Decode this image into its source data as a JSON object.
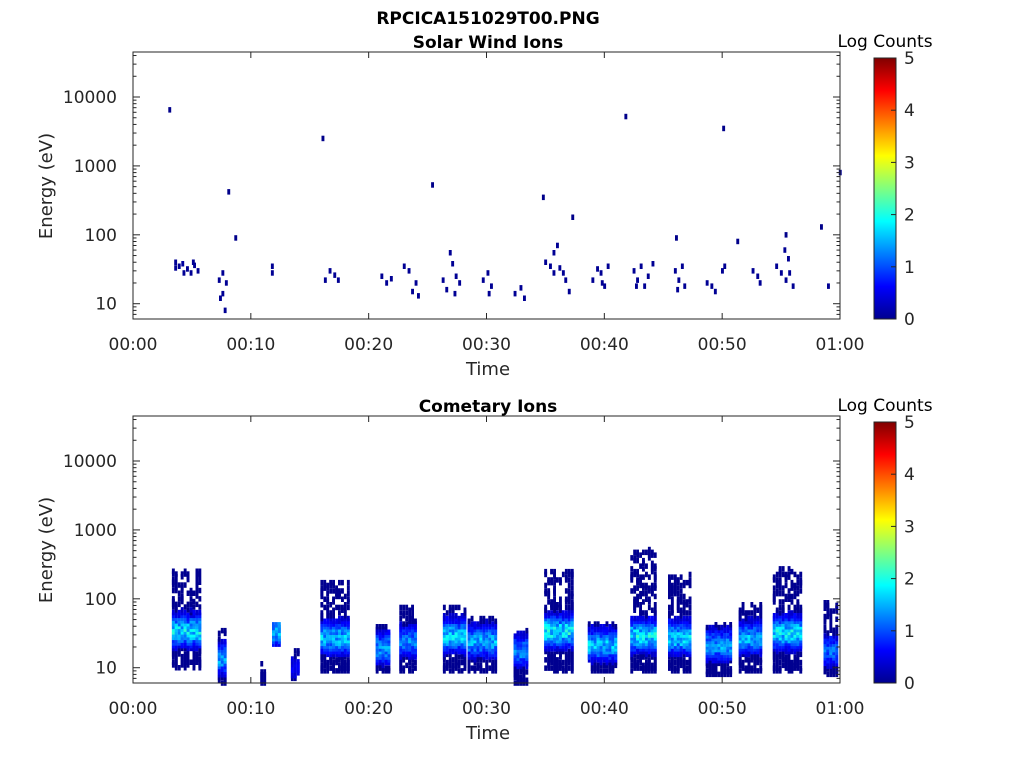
{
  "figure_title": "RPCICA151029T00.PNG",
  "chart_data": [
    {
      "type": "heatmap",
      "title": "Solar Wind Ions",
      "xlabel": "Time",
      "ylabel": "Energy (eV)",
      "x_ticks": [
        "00:00",
        "00:10",
        "00:20",
        "00:30",
        "00:40",
        "00:50",
        "01:00"
      ],
      "x_tick_minutes": [
        0,
        10,
        20,
        30,
        40,
        50,
        60
      ],
      "xlim_minutes": [
        0,
        60
      ],
      "y_scale": "log",
      "y_ticks": [
        "10",
        "100",
        "1000",
        "10000"
      ],
      "y_tick_values": [
        10,
        100,
        1000,
        10000
      ],
      "ylim": [
        6,
        45000
      ],
      "colorbar": {
        "label": "Log Counts",
        "min": 0,
        "max": 5,
        "ticks": [
          "0",
          "1",
          "2",
          "3",
          "4",
          "5"
        ],
        "colormap": "jet"
      },
      "cells": [
        [
          3.0,
          6500,
          0.05
        ],
        [
          8.0,
          420,
          0.05
        ],
        [
          8.6,
          90,
          0.05
        ],
        [
          16.0,
          2500,
          0.05
        ],
        [
          25.3,
          530,
          0.05
        ],
        [
          34.7,
          350,
          0.05
        ],
        [
          37.2,
          180,
          0.05
        ],
        [
          41.7,
          5200,
          0.05
        ],
        [
          50.0,
          3500,
          0.05
        ],
        [
          51.2,
          80,
          0.05
        ],
        [
          58.3,
          130,
          0.05
        ],
        [
          59.9,
          800,
          0.05
        ],
        [
          55.3,
          100,
          0.05
        ],
        [
          46.0,
          90,
          0.05
        ],
        [
          3.5,
          40,
          0.1
        ],
        [
          3.8,
          35,
          0.1
        ],
        [
          4.1,
          38,
          0.15
        ],
        [
          4.5,
          32,
          0.1
        ],
        [
          4.8,
          28,
          0.1
        ],
        [
          5.1,
          36,
          0.1
        ],
        [
          5.4,
          30,
          0.1
        ],
        [
          3.5,
          33,
          0.1
        ],
        [
          4.2,
          28,
          0.1
        ],
        [
          5.0,
          40,
          0.1
        ],
        [
          7.2,
          22,
          0.1
        ],
        [
          7.5,
          14,
          0.1
        ],
        [
          7.7,
          8,
          0.1
        ],
        [
          7.5,
          28,
          0.1
        ],
        [
          7.8,
          20,
          0.1
        ],
        [
          7.3,
          12,
          0.1
        ],
        [
          11.7,
          35,
          0.1
        ],
        [
          11.7,
          28,
          0.1
        ],
        [
          16.2,
          22,
          0.1
        ],
        [
          16.6,
          30,
          0.1
        ],
        [
          17.0,
          26,
          0.1
        ],
        [
          17.3,
          22,
          0.1
        ],
        [
          21.0,
          25,
          0.1
        ],
        [
          21.4,
          20,
          0.1
        ],
        [
          21.8,
          23,
          0.1
        ],
        [
          22.9,
          35,
          0.1
        ],
        [
          23.3,
          30,
          0.1
        ],
        [
          23.6,
          15,
          0.1
        ],
        [
          23.9,
          20,
          0.1
        ],
        [
          24.1,
          13,
          0.1
        ],
        [
          26.2,
          22,
          0.1
        ],
        [
          26.5,
          16,
          0.1
        ],
        [
          26.8,
          55,
          0.1
        ],
        [
          27.0,
          38,
          0.1
        ],
        [
          27.3,
          25,
          0.1
        ],
        [
          27.6,
          20,
          0.1
        ],
        [
          27.2,
          14,
          0.1
        ],
        [
          29.6,
          22,
          0.1
        ],
        [
          30.0,
          28,
          0.1
        ],
        [
          30.3,
          18,
          0.1
        ],
        [
          30.1,
          14,
          0.1
        ],
        [
          32.3,
          14,
          0.1
        ],
        [
          32.8,
          17,
          0.1
        ],
        [
          33.1,
          12,
          0.1
        ],
        [
          34.9,
          40,
          0.1
        ],
        [
          35.3,
          35,
          0.1
        ],
        [
          35.6,
          55,
          0.1
        ],
        [
          35.9,
          70,
          0.1
        ],
        [
          36.1,
          33,
          0.1
        ],
        [
          36.4,
          28,
          0.1
        ],
        [
          36.6,
          22,
          0.1
        ],
        [
          36.9,
          15,
          0.1
        ],
        [
          35.6,
          28,
          0.1
        ],
        [
          38.9,
          22,
          0.1
        ],
        [
          39.3,
          32,
          0.1
        ],
        [
          39.6,
          28,
          0.1
        ],
        [
          39.9,
          18,
          0.1
        ],
        [
          40.2,
          35,
          0.1
        ],
        [
          39.7,
          20,
          0.1
        ],
        [
          42.4,
          30,
          0.1
        ],
        [
          42.7,
          22,
          0.1
        ],
        [
          43.0,
          35,
          0.1
        ],
        [
          43.3,
          18,
          0.1
        ],
        [
          43.6,
          25,
          0.1
        ],
        [
          44.0,
          38,
          0.1
        ],
        [
          42.6,
          18,
          0.1
        ],
        [
          45.9,
          30,
          0.1
        ],
        [
          46.2,
          22,
          0.1
        ],
        [
          46.5,
          35,
          0.1
        ],
        [
          46.7,
          18,
          0.1
        ],
        [
          46.1,
          16,
          0.1
        ],
        [
          48.6,
          20,
          0.1
        ],
        [
          49.0,
          18,
          0.1
        ],
        [
          49.3,
          15,
          0.1
        ],
        [
          49.9,
          30,
          0.1
        ],
        [
          50.1,
          35,
          0.1
        ],
        [
          52.5,
          30,
          0.1
        ],
        [
          52.9,
          25,
          0.1
        ],
        [
          53.1,
          20,
          0.1
        ],
        [
          54.5,
          35,
          0.1
        ],
        [
          54.9,
          28,
          0.1
        ],
        [
          55.3,
          22,
          0.1
        ],
        [
          55.6,
          28,
          0.1
        ],
        [
          55.9,
          18,
          0.1
        ],
        [
          55.2,
          60,
          0.1
        ],
        [
          55.5,
          45,
          0.1
        ],
        [
          58.9,
          18,
          0.1
        ]
      ]
    },
    {
      "type": "heatmap",
      "title": "Cometary Ions",
      "xlabel": "Time",
      "ylabel": "Energy (eV)",
      "x_ticks": [
        "00:00",
        "00:10",
        "00:20",
        "00:30",
        "00:40",
        "00:50",
        "01:00"
      ],
      "x_tick_minutes": [
        0,
        10,
        20,
        30,
        40,
        50,
        60
      ],
      "xlim_minutes": [
        0,
        60
      ],
      "y_scale": "log",
      "y_ticks": [
        "10",
        "100",
        "1000",
        "10000"
      ],
      "y_tick_values": [
        10,
        100,
        1000,
        10000
      ],
      "ylim": [
        6,
        45000
      ],
      "colorbar": {
        "label": "Log Counts",
        "min": 0,
        "max": 5,
        "ticks": [
          "0",
          "1",
          "2",
          "3",
          "4",
          "5"
        ],
        "colormap": "jet"
      },
      "bursts": [
        {
          "t0": 3.3,
          "t1": 5.6,
          "emin": 10,
          "emax": 260,
          "core": 35,
          "peak": 2.0
        },
        {
          "t0": 7.2,
          "t1": 7.9,
          "emin": 6,
          "emax": 35,
          "core": 14,
          "peak": 1.7
        },
        {
          "t0": 10.8,
          "t1": 11.2,
          "emin": 6,
          "emax": 12,
          "core": 8,
          "peak": 0.3
        },
        {
          "t0": 11.8,
          "t1": 12.4,
          "emin": 22,
          "emax": 45,
          "core": 35,
          "peak": 1.8
        },
        {
          "t0": 13.4,
          "t1": 14.1,
          "emin": 7,
          "emax": 18,
          "core": 10,
          "peak": 0.6
        },
        {
          "t0": 15.9,
          "t1": 18.3,
          "emin": 9,
          "emax": 180,
          "core": 28,
          "peak": 1.8
        },
        {
          "t0": 20.6,
          "t1": 21.8,
          "emin": 9,
          "emax": 40,
          "core": 20,
          "peak": 1.6
        },
        {
          "t0": 22.6,
          "t1": 24.0,
          "emin": 9,
          "emax": 80,
          "core": 25,
          "peak": 1.5
        },
        {
          "t0": 26.3,
          "t1": 28.2,
          "emin": 9,
          "emax": 80,
          "core": 30,
          "peak": 1.9
        },
        {
          "t0": 28.4,
          "t1": 30.8,
          "emin": 9,
          "emax": 55,
          "core": 25,
          "peak": 1.7
        },
        {
          "t0": 32.3,
          "t1": 33.3,
          "emin": 6,
          "emax": 35,
          "core": 18,
          "peak": 1.5
        },
        {
          "t0": 34.9,
          "t1": 37.2,
          "emin": 9,
          "emax": 260,
          "core": 35,
          "peak": 2.1
        },
        {
          "t0": 38.6,
          "t1": 40.9,
          "emin": 9,
          "emax": 45,
          "core": 22,
          "peak": 1.8
        },
        {
          "t0": 42.2,
          "t1": 44.2,
          "emin": 9,
          "emax": 520,
          "core": 30,
          "peak": 2.0
        },
        {
          "t0": 45.4,
          "t1": 47.3,
          "emin": 9,
          "emax": 240,
          "core": 28,
          "peak": 1.9
        },
        {
          "t0": 48.6,
          "t1": 50.8,
          "emin": 8,
          "emax": 45,
          "core": 22,
          "peak": 1.6
        },
        {
          "t0": 51.4,
          "t1": 53.2,
          "emin": 9,
          "emax": 85,
          "core": 28,
          "peak": 1.7
        },
        {
          "t0": 54.3,
          "t1": 56.6,
          "emin": 9,
          "emax": 290,
          "core": 33,
          "peak": 2.0
        },
        {
          "t0": 58.6,
          "t1": 59.6,
          "emin": 8,
          "emax": 90,
          "core": 18,
          "peak": 1.3
        }
      ]
    }
  ]
}
